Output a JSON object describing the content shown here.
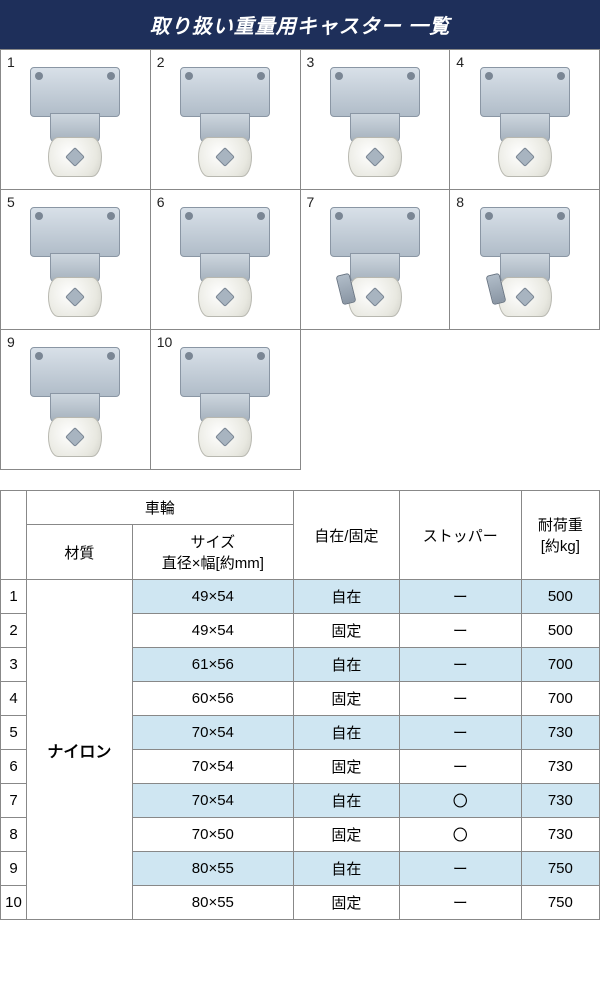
{
  "header": {
    "title": "取り扱い重量用キャスター 一覧"
  },
  "products": [
    {
      "num": 1,
      "hasBrake": false
    },
    {
      "num": 2,
      "hasBrake": false
    },
    {
      "num": 3,
      "hasBrake": false
    },
    {
      "num": 4,
      "hasBrake": false
    },
    {
      "num": 5,
      "hasBrake": false
    },
    {
      "num": 6,
      "hasBrake": false
    },
    {
      "num": 7,
      "hasBrake": true
    },
    {
      "num": 8,
      "hasBrake": true
    },
    {
      "num": 9,
      "hasBrake": false
    },
    {
      "num": 10,
      "hasBrake": false
    }
  ],
  "specHeader": {
    "wheelGroup": "車輪",
    "material": "材質",
    "size": "サイズ\n直径×幅[約mm]",
    "swivelFixed": "自在/固定",
    "stopper": "ストッパー",
    "load": "耐荷重\n[約kg]"
  },
  "materialName": "ナイロン",
  "rows": [
    {
      "idx": 1,
      "size": "49×54",
      "type": "自在",
      "stopper": "ー",
      "load": "500",
      "hl": true
    },
    {
      "idx": 2,
      "size": "49×54",
      "type": "固定",
      "stopper": "ー",
      "load": "500",
      "hl": false
    },
    {
      "idx": 3,
      "size": "61×56",
      "type": "自在",
      "stopper": "ー",
      "load": "700",
      "hl": true
    },
    {
      "idx": 4,
      "size": "60×56",
      "type": "固定",
      "stopper": "ー",
      "load": "700",
      "hl": false
    },
    {
      "idx": 5,
      "size": "70×54",
      "type": "自在",
      "stopper": "ー",
      "load": "730",
      "hl": true
    },
    {
      "idx": 6,
      "size": "70×54",
      "type": "固定",
      "stopper": "ー",
      "load": "730",
      "hl": false
    },
    {
      "idx": 7,
      "size": "70×54",
      "type": "自在",
      "stopper": "〇",
      "load": "730",
      "hl": true
    },
    {
      "idx": 8,
      "size": "70×50",
      "type": "固定",
      "stopper": "〇",
      "load": "730",
      "hl": false
    },
    {
      "idx": 9,
      "size": "80×55",
      "type": "自在",
      "stopper": "ー",
      "load": "750",
      "hl": true
    },
    {
      "idx": 10,
      "size": "80×55",
      "type": "固定",
      "stopper": "ー",
      "load": "750",
      "hl": false
    }
  ],
  "colors": {
    "headerBg": "#1e2f5a",
    "highlight": "#cfe6f2",
    "border": "#888888"
  }
}
